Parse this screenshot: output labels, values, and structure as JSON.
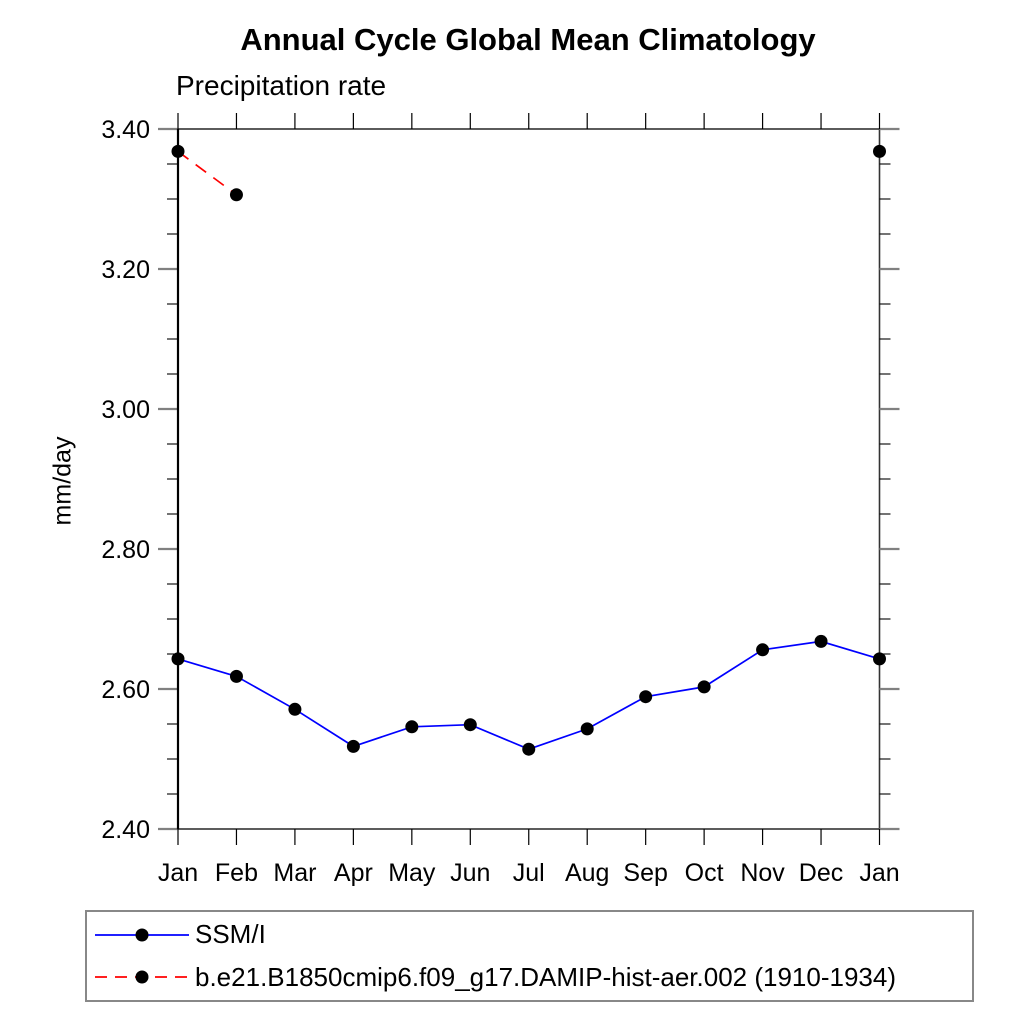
{
  "page": {
    "background_color": "#ffffff"
  },
  "chart_data": {
    "type": "line",
    "title": "Annual Cycle Global Mean Climatology",
    "subtitle": "Precipitation rate",
    "ylabel": "mm/day",
    "categories": [
      "Jan",
      "Feb",
      "Mar",
      "Apr",
      "May",
      "Jun",
      "Jul",
      "Aug",
      "Sep",
      "Oct",
      "Nov",
      "Dec",
      "Jan"
    ],
    "ylim": [
      2.4,
      3.4
    ],
    "ytick_major_step": 0.2,
    "ytick_minor_step": 0.05,
    "ytick_labels": [
      "2.40",
      "2.60",
      "2.80",
      "3.00",
      "3.20",
      "3.40"
    ],
    "grid": false,
    "legend_position": "bottom-left-box",
    "axis_color": "#333333",
    "major_tick_color": "#808080",
    "minor_tick_color": "#000000",
    "marker_color": "#000000",
    "series": [
      {
        "name": "SSM/I",
        "color": "#0000ff",
        "style": "solid",
        "marker": "filled-circle",
        "values": [
          2.643,
          2.618,
          2.571,
          2.518,
          2.546,
          2.549,
          2.514,
          2.543,
          2.589,
          2.603,
          2.656,
          2.668,
          2.643
        ]
      },
      {
        "name": "b.e21.B1850cmip6.f09_g17.DAMIP-hist-aer.002 (1910-1934)",
        "color": "#ff0000",
        "style": "dashed",
        "marker": "filled-circle",
        "values": [
          3.368,
          3.306,
          null,
          null,
          null,
          null,
          null,
          null,
          null,
          null,
          null,
          null,
          3.368
        ]
      }
    ]
  }
}
